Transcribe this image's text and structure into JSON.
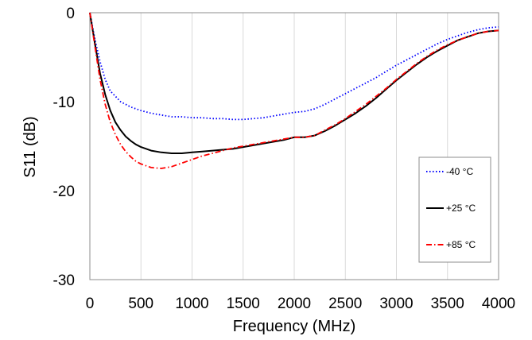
{
  "chart_data": {
    "type": "line",
    "title": "",
    "xlabel": "Frequency (MHz)",
    "ylabel": "S11 (dB)",
    "xlim": [
      0,
      4000
    ],
    "ylim": [
      -30,
      0
    ],
    "x_ticks": [
      0,
      500,
      1000,
      1500,
      2000,
      2500,
      3000,
      3500,
      4000
    ],
    "y_ticks": [
      0,
      -10,
      -20,
      -30
    ],
    "x_tick_labels": [
      "0",
      "500",
      "1000",
      "1500",
      "2000",
      "2500",
      "3000",
      "3500",
      "4000"
    ],
    "y_tick_labels": [
      "0",
      "-10",
      "-20",
      "-30"
    ],
    "grid": "vertical",
    "legend_position": "right",
    "series": [
      {
        "name": "-40 °C",
        "color": "#0000ff",
        "dash": "dotted",
        "points": [
          [
            0,
            0
          ],
          [
            50,
            -3
          ],
          [
            100,
            -5.5
          ],
          [
            150,
            -7.5
          ],
          [
            200,
            -8.8
          ],
          [
            300,
            -10
          ],
          [
            400,
            -10.6
          ],
          [
            500,
            -11
          ],
          [
            600,
            -11.3
          ],
          [
            700,
            -11.5
          ],
          [
            800,
            -11.7
          ],
          [
            900,
            -11.7
          ],
          [
            1000,
            -11.8
          ],
          [
            1100,
            -11.8
          ],
          [
            1200,
            -11.9
          ],
          [
            1300,
            -11.9
          ],
          [
            1400,
            -12
          ],
          [
            1500,
            -12
          ],
          [
            1600,
            -11.9
          ],
          [
            1700,
            -11.8
          ],
          [
            1800,
            -11.6
          ],
          [
            1900,
            -11.4
          ],
          [
            2000,
            -11.2
          ],
          [
            2100,
            -11.1
          ],
          [
            2200,
            -10.8
          ],
          [
            2300,
            -10.3
          ],
          [
            2400,
            -9.7
          ],
          [
            2500,
            -9.1
          ],
          [
            2600,
            -8.5
          ],
          [
            2700,
            -7.9
          ],
          [
            2800,
            -7.3
          ],
          [
            2900,
            -6.6
          ],
          [
            3000,
            -5.9
          ],
          [
            3100,
            -5.3
          ],
          [
            3200,
            -4.7
          ],
          [
            3300,
            -4.1
          ],
          [
            3400,
            -3.5
          ],
          [
            3500,
            -3
          ],
          [
            3600,
            -2.6
          ],
          [
            3700,
            -2.2
          ],
          [
            3800,
            -1.9
          ],
          [
            3900,
            -1.7
          ],
          [
            4000,
            -1.6
          ]
        ]
      },
      {
        "name": "+25 °C",
        "color": "#000000",
        "dash": "solid",
        "points": [
          [
            0,
            0
          ],
          [
            50,
            -3.5
          ],
          [
            100,
            -6.8
          ],
          [
            150,
            -9.2
          ],
          [
            200,
            -11
          ],
          [
            250,
            -12.3
          ],
          [
            300,
            -13.2
          ],
          [
            350,
            -13.9
          ],
          [
            400,
            -14.4
          ],
          [
            450,
            -14.8
          ],
          [
            500,
            -15.1
          ],
          [
            600,
            -15.5
          ],
          [
            700,
            -15.7
          ],
          [
            800,
            -15.8
          ],
          [
            900,
            -15.8
          ],
          [
            1000,
            -15.7
          ],
          [
            1100,
            -15.6
          ],
          [
            1200,
            -15.5
          ],
          [
            1300,
            -15.4
          ],
          [
            1400,
            -15.3
          ],
          [
            1500,
            -15.1
          ],
          [
            1600,
            -14.9
          ],
          [
            1700,
            -14.7
          ],
          [
            1800,
            -14.5
          ],
          [
            1900,
            -14.3
          ],
          [
            2000,
            -14
          ],
          [
            2100,
            -14
          ],
          [
            2200,
            -13.8
          ],
          [
            2300,
            -13.3
          ],
          [
            2400,
            -12.7
          ],
          [
            2500,
            -12
          ],
          [
            2600,
            -11.3
          ],
          [
            2700,
            -10.5
          ],
          [
            2800,
            -9.6
          ],
          [
            2900,
            -8.6
          ],
          [
            3000,
            -7.6
          ],
          [
            3100,
            -6.7
          ],
          [
            3200,
            -5.8
          ],
          [
            3300,
            -5
          ],
          [
            3400,
            -4.3
          ],
          [
            3500,
            -3.7
          ],
          [
            3600,
            -3.1
          ],
          [
            3700,
            -2.7
          ],
          [
            3800,
            -2.3
          ],
          [
            3900,
            -2.1
          ],
          [
            4000,
            -2
          ]
        ]
      },
      {
        "name": "+85 °C",
        "color": "#ff0000",
        "dash": "dashdot",
        "points": [
          [
            0,
            0
          ],
          [
            50,
            -3.8
          ],
          [
            100,
            -7.5
          ],
          [
            150,
            -10.3
          ],
          [
            200,
            -12.3
          ],
          [
            250,
            -13.7
          ],
          [
            300,
            -14.8
          ],
          [
            350,
            -15.6
          ],
          [
            400,
            -16.2
          ],
          [
            450,
            -16.7
          ],
          [
            500,
            -17
          ],
          [
            600,
            -17.4
          ],
          [
            700,
            -17.5
          ],
          [
            800,
            -17.3
          ],
          [
            900,
            -16.9
          ],
          [
            1000,
            -16.5
          ],
          [
            1100,
            -16.1
          ],
          [
            1200,
            -15.8
          ],
          [
            1300,
            -15.5
          ],
          [
            1400,
            -15.2
          ],
          [
            1500,
            -15
          ],
          [
            1600,
            -14.8
          ],
          [
            1700,
            -14.6
          ],
          [
            1800,
            -14.4
          ],
          [
            1900,
            -14.2
          ],
          [
            2000,
            -14
          ],
          [
            2100,
            -14
          ],
          [
            2200,
            -13.8
          ],
          [
            2300,
            -13.2
          ],
          [
            2400,
            -12.6
          ],
          [
            2500,
            -11.9
          ],
          [
            2600,
            -11.1
          ],
          [
            2700,
            -10.3
          ],
          [
            2800,
            -9.4
          ],
          [
            2900,
            -8.5
          ],
          [
            3000,
            -7.5
          ],
          [
            3100,
            -6.6
          ],
          [
            3200,
            -5.7
          ],
          [
            3300,
            -4.9
          ],
          [
            3400,
            -4.2
          ],
          [
            3500,
            -3.6
          ],
          [
            3600,
            -3.1
          ],
          [
            3700,
            -2.7
          ],
          [
            3800,
            -2.3
          ],
          [
            3900,
            -2.1
          ],
          [
            4000,
            -2
          ]
        ]
      }
    ]
  }
}
